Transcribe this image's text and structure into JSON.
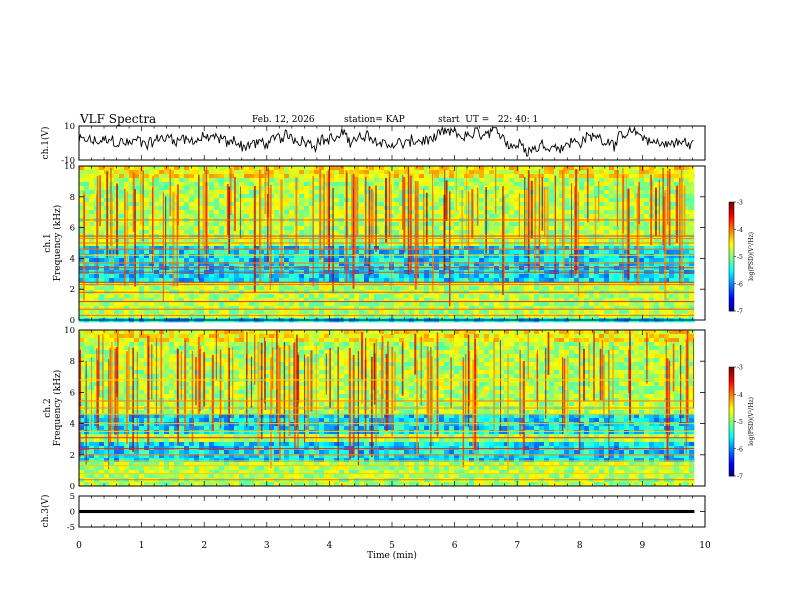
{
  "header": {
    "title": "VLF Spectra",
    "date": "Feb. 12, 2026",
    "station": "station= KAP",
    "start": "start  UT =   22: 40: 1"
  },
  "chart_data": [
    {
      "type": "line",
      "name": "ch1-waveform",
      "ylabel": "ch.1(V)",
      "ylim": [
        -10,
        10
      ],
      "ytick_labels": [
        "10",
        "-10"
      ],
      "xlim": [
        0,
        9.83
      ],
      "note": "broadband voltage trace, values oscillating roughly between -5 and 8 V"
    },
    {
      "type": "heatmap",
      "name": "ch1-spectrogram",
      "ylabel": "ch.1\nFrequency  (kHz)",
      "ylabel_line1": "ch.1",
      "ylabel_line2": "Frequency  (kHz)",
      "ylim": [
        0,
        10
      ],
      "yticks": [
        0,
        2,
        4,
        6,
        8,
        10
      ],
      "xlim": [
        0,
        9.83
      ],
      "colorbar": {
        "label": "log(PSD)(V²/Hz)",
        "range": [
          -7,
          -3
        ],
        "ticks": [
          "-3",
          "-4",
          "-5",
          "-6",
          "-7"
        ]
      },
      "hum_lines_khz": [
        0.3,
        0.7,
        1.2,
        1.8,
        2.3,
        2.45,
        3.1,
        3.4,
        3.7,
        4.2,
        4.6,
        5.0,
        5.3,
        5.45,
        6.5
      ],
      "quiet_band_khz": [
        [
          2.6,
          4.9
        ]
      ],
      "ambient_level": -4.8
    },
    {
      "type": "heatmap",
      "name": "ch2-spectrogram",
      "ylabel": "ch.2\nFrequency  (kHz)",
      "ylabel_line1": "ch.2",
      "ylabel_line2": "Frequency  (kHz)",
      "ylim": [
        0,
        10
      ],
      "yticks": [
        0,
        2,
        4,
        6,
        8,
        10
      ],
      "xlim": [
        0,
        9.83
      ],
      "colorbar": {
        "label": "log(PSD)(V²/Hz)",
        "range": [
          -7,
          -3
        ],
        "ticks": [
          "-3",
          "-4",
          "-5",
          "-6",
          "-7"
        ]
      },
      "hum_lines_khz": [
        0.4,
        0.8,
        1.3,
        1.6,
        2.0,
        2.4,
        3.1,
        3.5,
        4.0,
        4.6,
        5.0,
        5.45,
        6.8
      ],
      "quiet_band_khz": [
        [
          1.6,
          3.0
        ],
        [
          3.4,
          4.8
        ]
      ],
      "ambient_level": -4.8
    },
    {
      "type": "line",
      "name": "ch3-signal",
      "ylabel": "ch.3(V)",
      "ylim": [
        -5,
        5
      ],
      "yticks": [
        -5,
        0,
        5
      ],
      "ytick_labels": [
        "-5",
        "0",
        "5"
      ],
      "xlim": [
        0,
        9.83
      ],
      "value_range": [
        -0.5,
        0.5
      ],
      "note": "dense oscillation forming a solid band around 0 V"
    }
  ],
  "xaxis": {
    "label": "Time  (min)",
    "ticks": [
      "0",
      "1",
      "2",
      "3",
      "4",
      "5",
      "6",
      "7",
      "8",
      "9",
      "10"
    ],
    "range": [
      0,
      10
    ]
  }
}
